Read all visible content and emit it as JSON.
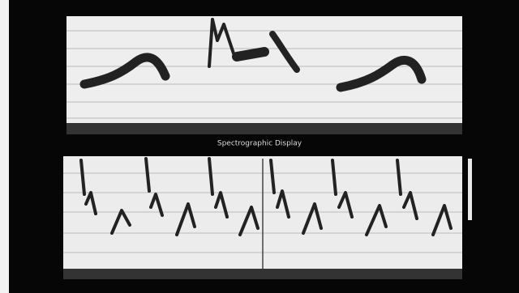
{
  "middle_caption": "Spectrographic Display"
}
